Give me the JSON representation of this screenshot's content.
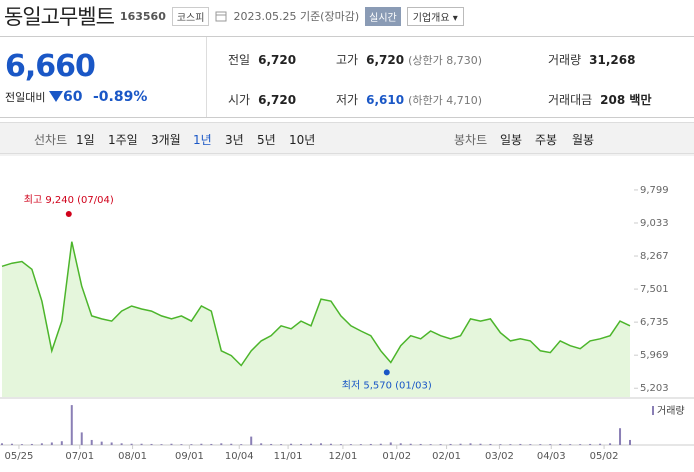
{
  "header": {
    "title": "동일고무벨트",
    "code": "163560",
    "market": "코스피",
    "date": "2023.05.25 기준(장마감)",
    "realtime": "실시간",
    "overview": "기업개요 ▾"
  },
  "quote": {
    "price": "6,660",
    "change_label": "전일대비",
    "change": "60",
    "change_pct": "-0.89%"
  },
  "stats": [
    [
      {
        "label": "전일",
        "value": "6,720"
      },
      {
        "label": "고가",
        "value": "6,720",
        "extra": "(상한가 8,730)"
      },
      {
        "label": "거래량",
        "value": "31,268"
      }
    ],
    [
      {
        "label": "시가",
        "value": "6,720"
      },
      {
        "label": "저가",
        "value": "6,610",
        "extra": "(하한가 4,710)",
        "tone": "down"
      },
      {
        "label": "거래대금",
        "value": "208 백만"
      }
    ]
  ],
  "tabs": {
    "line_label": "선차트",
    "line": [
      "1일",
      "1주일",
      "3개월",
      "1년",
      "3년",
      "5년",
      "10년"
    ],
    "selected": 3,
    "candle_label": "봉차트",
    "candle": [
      "일봉",
      "주봉",
      "월봉"
    ]
  },
  "chart_data": {
    "type": "line",
    "color": "#4cb52b",
    "fill": "#e5f6dc",
    "values": [
      8030,
      8100,
      8140,
      7960,
      7220,
      6070,
      6760,
      8600,
      7570,
      6880,
      6810,
      6760,
      6990,
      7110,
      7040,
      6990,
      6880,
      6810,
      6880,
      6760,
      7110,
      6990,
      6070,
      5960,
      5730,
      6070,
      6300,
      6420,
      6650,
      6580,
      6760,
      6650,
      7270,
      7220,
      6880,
      6650,
      6530,
      6420,
      6070,
      5800,
      6190,
      6420,
      6350,
      6530,
      6420,
      6350,
      6420,
      6810,
      6760,
      6810,
      6490,
      6300,
      6350,
      6300,
      6070,
      6030,
      6300,
      6190,
      6120,
      6300,
      6350,
      6420,
      6760,
      6650
    ],
    "xlim": [
      0,
      63
    ],
    "ylim": [
      5000,
      10400
    ],
    "yticks": [
      {
        "value": 9799,
        "label": "9,799"
      },
      {
        "value": 9033,
        "label": "9,033"
      },
      {
        "value": 8267,
        "label": "8,267"
      },
      {
        "value": 7501,
        "label": "7,501"
      },
      {
        "value": 6735,
        "label": "6,735"
      },
      {
        "value": 5969,
        "label": "5,969"
      },
      {
        "value": 5203,
        "label": "5,203"
      }
    ],
    "xticks": [
      {
        "value": 1.7,
        "label": "05/25"
      },
      {
        "value": 7.8,
        "label": "07/01"
      },
      {
        "value": 13.1,
        "label": "08/01"
      },
      {
        "value": 18.8,
        "label": "09/01"
      },
      {
        "value": 23.8,
        "label": "10/04"
      },
      {
        "value": 28.7,
        "label": "11/01"
      },
      {
        "value": 34.2,
        "label": "12/01"
      },
      {
        "value": 39.6,
        "label": "01/02"
      },
      {
        "value": 44.6,
        "label": "02/01"
      },
      {
        "value": 49.9,
        "label": "03/02"
      },
      {
        "value": 55.1,
        "label": "04/03"
      },
      {
        "value": 60.4,
        "label": "05/02"
      }
    ],
    "high": {
      "label": "최고 9,240 (07/04)",
      "value": 9240,
      "x": 6.7,
      "color": "#d0021b"
    },
    "low": {
      "label": "최저 5,570 (01/03)",
      "value": 5570,
      "x": 38.6,
      "color": "#1a57c6"
    },
    "volume": {
      "name": "거래량",
      "color": "#8a7fb5",
      "ylim": [
        0,
        1000000
      ],
      "values": [
        40000,
        30000,
        20000,
        25000,
        40000,
        60000,
        90000,
        950000,
        300000,
        120000,
        80000,
        60000,
        40000,
        30000,
        30000,
        25000,
        20000,
        30000,
        20000,
        20000,
        30000,
        25000,
        40000,
        30000,
        20000,
        200000,
        40000,
        25000,
        20000,
        30000,
        25000,
        30000,
        40000,
        30000,
        20000,
        20000,
        20000,
        25000,
        30000,
        60000,
        40000,
        30000,
        25000,
        20000,
        20000,
        25000,
        30000,
        40000,
        30000,
        25000,
        20000,
        20000,
        25000,
        20000,
        20000,
        20000,
        25000,
        20000,
        20000,
        25000,
        30000,
        40000,
        400000,
        120000
      ]
    }
  }
}
